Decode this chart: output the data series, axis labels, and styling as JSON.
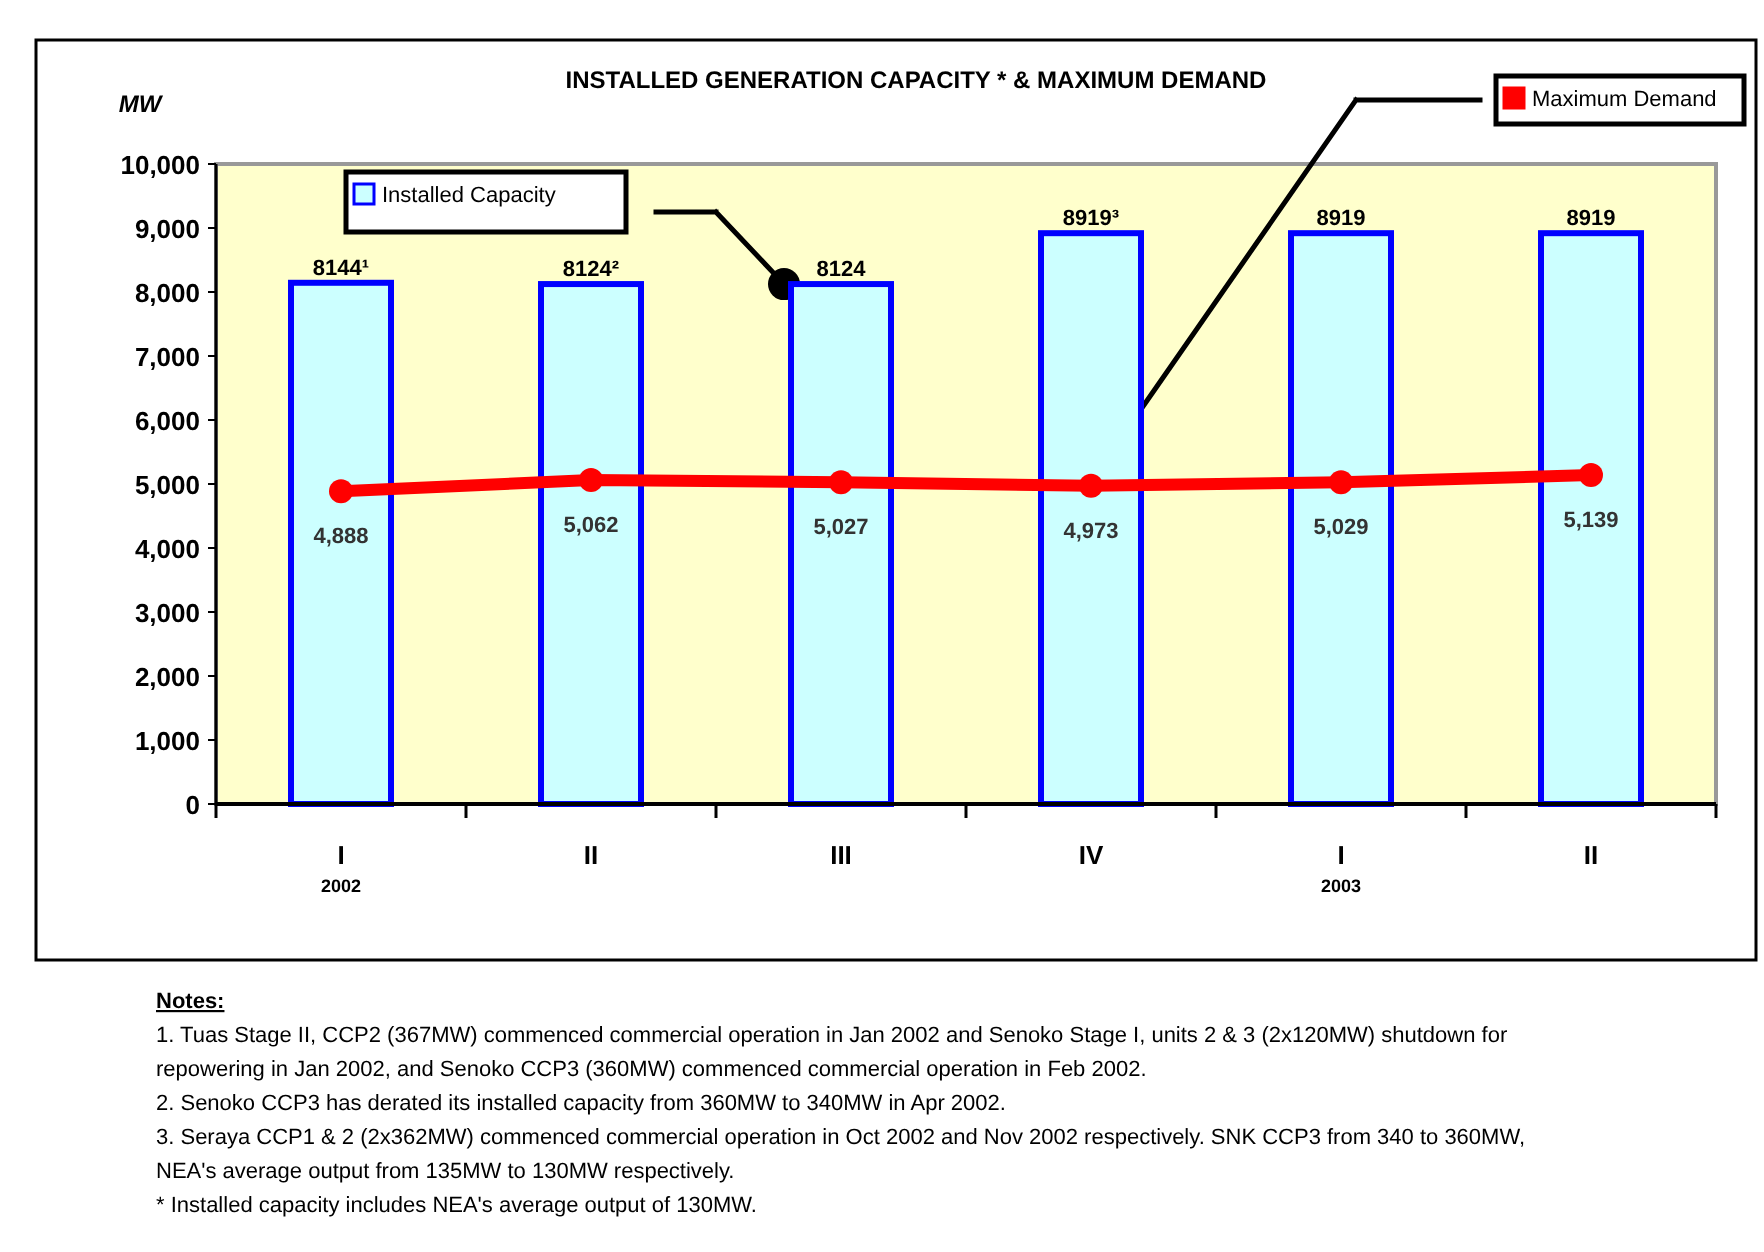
{
  "chart_data": {
    "type": "bar",
    "title": "INSTALLED GENERATION CAPACITY * & MAXIMUM DEMAND",
    "ylabel": "MW",
    "categories": [
      "I\n2002",
      "II",
      "III",
      "IV",
      "I\n2003",
      "II"
    ],
    "legend": "top",
    "ylim": [
      0,
      10000
    ],
    "yticks": [
      {
        "value": 0,
        "label": "0"
      },
      {
        "value": 1000,
        "label": "1,000"
      },
      {
        "value": 2000,
        "label": "2,000"
      },
      {
        "value": 3000,
        "label": "3,000"
      },
      {
        "value": 4000,
        "label": "4,000"
      },
      {
        "value": 5000,
        "label": "5,000"
      },
      {
        "value": 6000,
        "label": "6,000"
      },
      {
        "value": 7000,
        "label": "7,000"
      },
      {
        "value": 8000,
        "label": "8,000"
      },
      {
        "value": 9000,
        "label": "9,000"
      },
      {
        "value": 10000,
        "label": "10,000"
      }
    ],
    "series": [
      {
        "name": "Installed Capacity",
        "color": "#ccffff",
        "values": [
          8144,
          8124,
          8124,
          8919,
          8919,
          8919
        ],
        "value_labels": [
          "8144¹",
          "8124²",
          "8124",
          "8919³",
          "8919",
          "8919"
        ]
      },
      {
        "name": "Maximum Demand",
        "type": "line",
        "color": "#ff0000",
        "marker": "circle",
        "values": [
          4888,
          5062,
          5027,
          4973,
          5029,
          5139
        ],
        "value_labels": [
          "4,888",
          "5,062",
          "5,027",
          "4,973",
          "5,029",
          "5,139"
        ]
      }
    ],
    "annotations": [
      "Notes:",
      "1. Tuas Stage II, CCP2 (367MW) commenced commercial operation in Jan 2002 and Senoko Stage I, units 2 & 3 (2x120MW) shutdown for repowering in Jan 2002, and Senoko CCP3 (360MW) commenced commercial operation in Feb 2002.",
      "2. Senoko CCP3 has derated its installed capacity from 360MW to 340MW in Apr 2002.",
      "3. Seraya CCP1 & 2 (2x362MW) commenced commercial operation in Oct 2002 and Nov 2002 respectively. SNK CCP3 from 340 to 360MW, NEA's average output from 135MW to 130MW respectively.",
      "*  Installed capacity includes NEA's average output of 130MW."
    ]
  }
}
